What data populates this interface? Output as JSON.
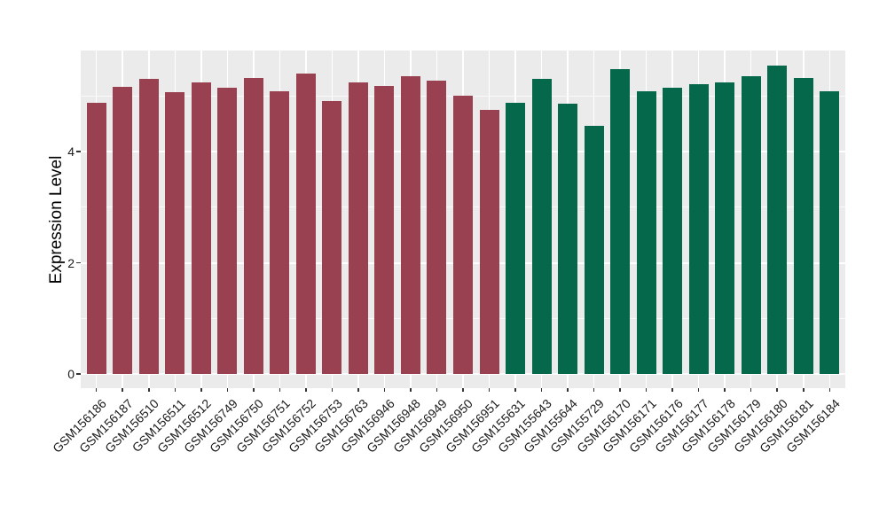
{
  "chart_data": {
    "type": "bar",
    "ylabel": "Expression Level",
    "xlabel": "",
    "categories": [
      "GSM156186",
      "GSM156187",
      "GSM156510",
      "GSM156511",
      "GSM156512",
      "GSM156749",
      "GSM156750",
      "GSM156751",
      "GSM156752",
      "GSM156753",
      "GSM156763",
      "GSM156946",
      "GSM156948",
      "GSM156949",
      "GSM156950",
      "GSM156951",
      "GSM155631",
      "GSM155643",
      "GSM155644",
      "GSM155729",
      "GSM156170",
      "GSM156171",
      "GSM156176",
      "GSM156177",
      "GSM156178",
      "GSM156179",
      "GSM156180",
      "GSM156181",
      "GSM156184"
    ],
    "values": [
      4.87,
      5.17,
      5.31,
      5.06,
      5.25,
      5.14,
      5.33,
      5.08,
      5.41,
      4.91,
      5.24,
      5.18,
      5.36,
      5.27,
      5.01,
      4.75,
      4.88,
      5.3,
      4.86,
      4.47,
      5.49,
      5.09,
      5.14,
      5.21,
      5.24,
      5.36,
      5.55,
      5.32,
      5.09
    ],
    "groups": [
      {
        "name": "maroon-group",
        "color": "#9A4151",
        "start": 0,
        "count": 16
      },
      {
        "name": "green-group",
        "color": "#06684A",
        "start": 16,
        "count": 13
      }
    ],
    "y_axis": {
      "tick_labels": [
        "0",
        "2",
        "4"
      ],
      "ticks": [
        0,
        2,
        4
      ],
      "minor_ticks": [
        1,
        3,
        5
      ],
      "panel_range": [
        -0.28,
        5.83
      ]
    },
    "style": {
      "panel_bg": "#EBEBEB",
      "grid_color": "#FFFFFF",
      "tick_color": "#333333",
      "text_color": "#1a1a1a"
    },
    "legend": false,
    "grid": true
  }
}
